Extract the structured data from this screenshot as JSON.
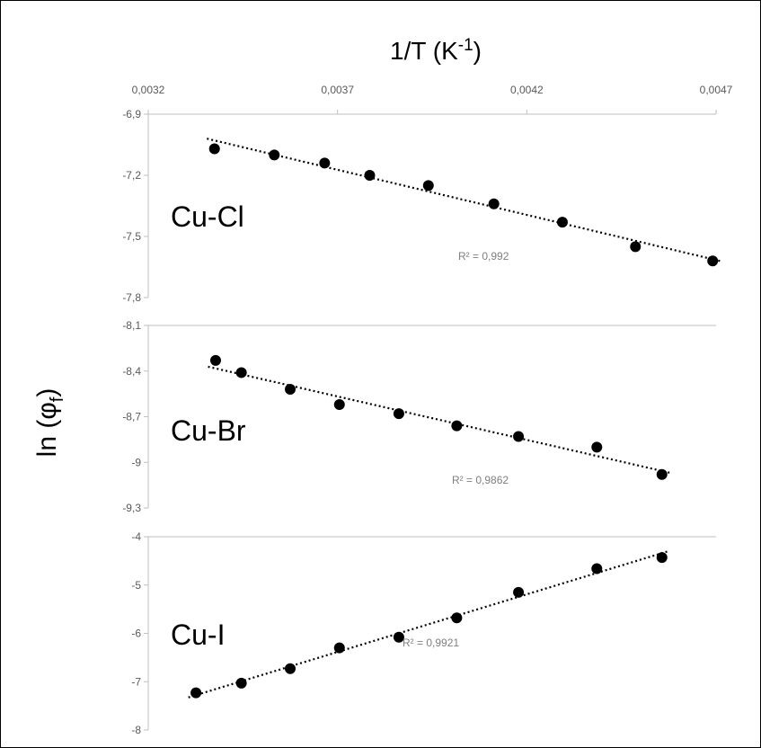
{
  "chart_data": {
    "type": "scatter",
    "title": "1/T (K",
    "title_sup": "-1",
    "title_close": ")",
    "ylabel": "ln (φ",
    "ylabel_sub": "f",
    "ylabel_close": ")",
    "x_axis": {
      "position": "top",
      "ticks": [
        "0,0032",
        "0,0037",
        "0,0042",
        "0,0047"
      ],
      "tick_values": [
        0.0032,
        0.0037,
        0.0042,
        0.0047
      ],
      "range": [
        0.0032,
        0.0047
      ]
    },
    "grid": false,
    "marker_color": "#000000",
    "trendline": "dotted linear",
    "panels": [
      {
        "name": "Cu-Cl",
        "r2_label": "R² = 0,992",
        "ylim": [
          -7.8,
          -6.9
        ],
        "y_ticks": [
          "-6,9",
          "-7,2",
          "-7,5",
          "-7,8"
        ],
        "y_tick_values": [
          -6.9,
          -7.2,
          -7.5,
          -7.8
        ],
        "x": [
          0.003375,
          0.003533,
          0.003666,
          0.003785,
          0.00394,
          0.004113,
          0.004294,
          0.004487,
          0.004691
        ],
        "y": [
          -7.07,
          -7.1,
          -7.14,
          -7.2,
          -7.25,
          -7.34,
          -7.43,
          -7.55,
          -7.62
        ]
      },
      {
        "name": "Cu-Br",
        "r2_label": "R² = 0,9862",
        "ylim": [
          -9.3,
          -8.1
        ],
        "y_ticks": [
          "-8,1",
          "-8,4",
          "-8,7",
          "-9",
          "-9,3"
        ],
        "y_tick_values": [
          -8.1,
          -8.4,
          -8.7,
          -9.0,
          -9.3
        ],
        "x": [
          0.003378,
          0.003446,
          0.003575,
          0.003705,
          0.003862,
          0.004015,
          0.004178,
          0.004385,
          0.004557
        ],
        "y": [
          -8.33,
          -8.41,
          -8.52,
          -8.62,
          -8.68,
          -8.76,
          -8.83,
          -8.9,
          -9.08
        ]
      },
      {
        "name": "Cu-I",
        "r2_label": "R² = 0,9921",
        "ylim": [
          -8,
          -4
        ],
        "y_ticks": [
          "-4",
          "-5",
          "-6",
          "-7",
          "-8"
        ],
        "y_tick_values": [
          -4,
          -5,
          -6,
          -7,
          -8
        ],
        "x": [
          0.003326,
          0.003446,
          0.003575,
          0.003705,
          0.003862,
          0.004015,
          0.004178,
          0.004385,
          0.004557
        ],
        "y": [
          -7.23,
          -7.03,
          -6.73,
          -6.3,
          -6.08,
          -5.68,
          -5.15,
          -4.66,
          -4.43
        ]
      }
    ]
  }
}
